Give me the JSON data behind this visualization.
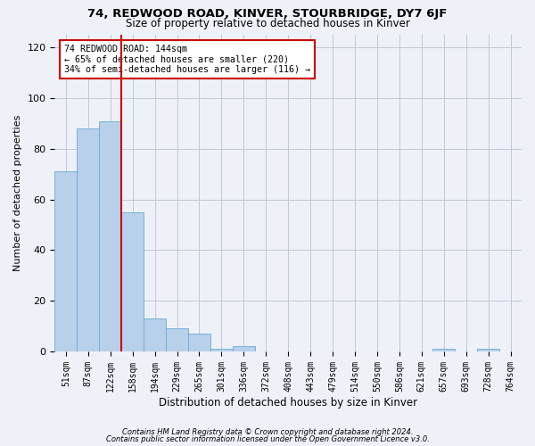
{
  "title_line1": "74, REDWOOD ROAD, KINVER, STOURBRIDGE, DY7 6JF",
  "title_line2": "Size of property relative to detached houses in Kinver",
  "xlabel": "Distribution of detached houses by size in Kinver",
  "ylabel": "Number of detached properties",
  "bin_labels": [
    "51sqm",
    "87sqm",
    "122sqm",
    "158sqm",
    "194sqm",
    "229sqm",
    "265sqm",
    "301sqm",
    "336sqm",
    "372sqm",
    "408sqm",
    "443sqm",
    "479sqm",
    "514sqm",
    "550sqm",
    "586sqm",
    "621sqm",
    "657sqm",
    "693sqm",
    "728sqm",
    "764sqm"
  ],
  "bar_heights": [
    71,
    88,
    91,
    55,
    13,
    9,
    7,
    1,
    2,
    0,
    0,
    0,
    0,
    0,
    0,
    0,
    0,
    1,
    0,
    1,
    0
  ],
  "bar_color": "#b8d0ea",
  "bar_edge_color": "#6aaad4",
  "vline_x": 2.5,
  "vline_color": "#cc0000",
  "annotation_line1": "74 REDWOOD ROAD: 144sqm",
  "annotation_line2": "← 65% of detached houses are smaller (220)",
  "annotation_line3": "34% of semi-detached houses are larger (116) →",
  "annotation_box_color": "#ffffff",
  "annotation_box_edge": "#cc0000",
  "ylim": [
    0,
    125
  ],
  "yticks": [
    0,
    20,
    40,
    60,
    80,
    100,
    120
  ],
  "footer_line1": "Contains HM Land Registry data © Crown copyright and database right 2024.",
  "footer_line2": "Contains public sector information licensed under the Open Government Licence v3.0.",
  "background_color": "#eef2f8"
}
